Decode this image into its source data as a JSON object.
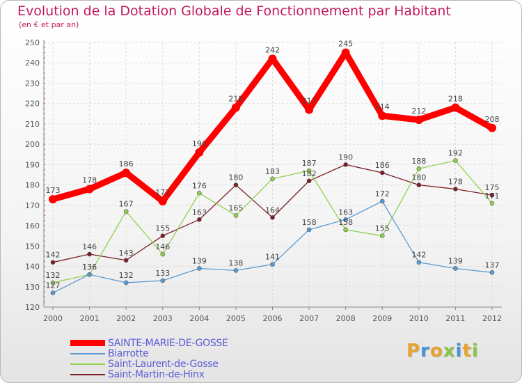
{
  "chart_data": {
    "type": "line",
    "title": "Evolution de la Dotation Globale de Fonctionnement par Habitant",
    "subtitle": "(en € et par an)",
    "xlabel": "",
    "ylabel": "",
    "ylim": [
      120,
      250
    ],
    "ytick_step": 10,
    "yminor_step": 2.5,
    "grid": true,
    "x": [
      "2000",
      "2001",
      "2002",
      "2003",
      "2004",
      "2005",
      "2006",
      "2007",
      "2008",
      "2009",
      "2010",
      "2011",
      "2012"
    ],
    "series": [
      {
        "name": "SAINTE-MARIE-DE-GOSSE",
        "color": "#ff0000",
        "values": [
          173,
          178,
          186,
          172,
          196,
          218,
          242,
          217,
          245,
          214,
          212,
          218,
          208
        ]
      },
      {
        "name": "Biarrotte",
        "color": "#5b9bd5",
        "values": [
          127,
          136,
          132,
          133,
          139,
          138,
          141,
          158,
          163,
          172,
          142,
          139,
          137
        ]
      },
      {
        "name": "Saint-Laurent-de-Gosse",
        "color": "#92d050",
        "values": [
          132,
          136,
          167,
          146,
          176,
          165,
          183,
          187,
          158,
          155,
          188,
          192,
          171
        ]
      },
      {
        "name": "Saint-Martin-de-Hinx",
        "color": "#7b1f24",
        "values": [
          142,
          146,
          143,
          155,
          163,
          180,
          164,
          182,
          190,
          186,
          180,
          178,
          175
        ]
      }
    ]
  },
  "logo": {
    "letters": [
      {
        "ch": "P",
        "color": "#e8a32e"
      },
      {
        "ch": "r",
        "color": "#4a90d9"
      },
      {
        "ch": "o",
        "color": "#e8a32e"
      },
      {
        "ch": "x",
        "color": "#8bc34a"
      },
      {
        "ch": "i",
        "color": "#4a90d9"
      },
      {
        "ch": "t",
        "color": "#e8a32e"
      },
      {
        "ch": "i",
        "color": "#8bc34a"
      }
    ]
  }
}
